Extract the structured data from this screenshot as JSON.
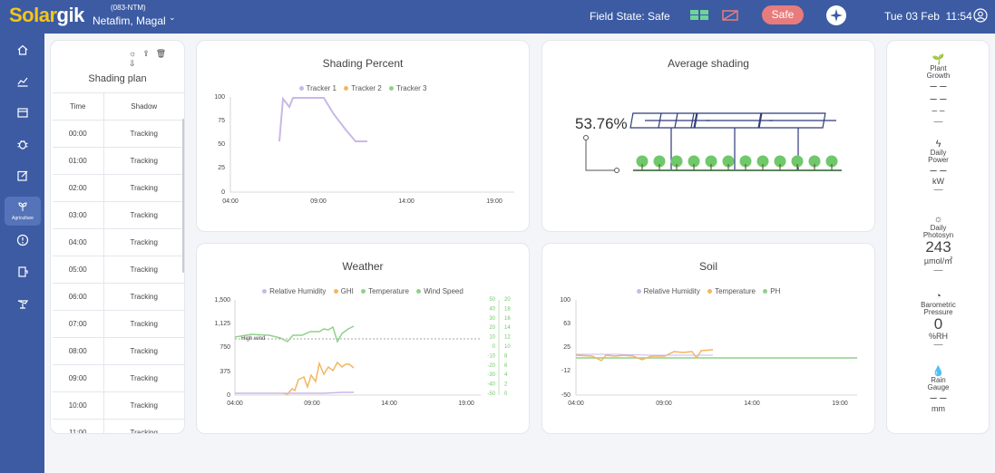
{
  "header": {
    "logo_part1": "Solar",
    "logo_part2": "gik",
    "site_code": "(083-NTM)",
    "site_name": "Netafim, Magal",
    "field_state": "Field State: Safe",
    "safe_label": "Safe",
    "date": "Tue 03 Feb",
    "time": "11:54"
  },
  "sidebar": {
    "items": [
      {
        "name": "home-icon"
      },
      {
        "name": "analytics-icon"
      },
      {
        "name": "calendar-icon"
      },
      {
        "name": "bug-icon"
      },
      {
        "name": "edit-icon"
      },
      {
        "name": "agriculture-icon",
        "label": "Agriculture",
        "active": true
      },
      {
        "name": "alert-icon"
      },
      {
        "name": "report-icon"
      },
      {
        "name": "tracker-icon"
      }
    ]
  },
  "shading_plan": {
    "title": "Shading plan",
    "col_time": "Time",
    "col_shadow": "Shadow",
    "rows": [
      {
        "time": "00:00",
        "shadow": "Tracking"
      },
      {
        "time": "01:00",
        "shadow": "Tracking"
      },
      {
        "time": "02:00",
        "shadow": "Tracking"
      },
      {
        "time": "03:00",
        "shadow": "Tracking"
      },
      {
        "time": "04:00",
        "shadow": "Tracking"
      },
      {
        "time": "05:00",
        "shadow": "Tracking"
      },
      {
        "time": "06:00",
        "shadow": "Tracking"
      },
      {
        "time": "07:00",
        "shadow": "Tracking"
      },
      {
        "time": "08:00",
        "shadow": "Tracking"
      },
      {
        "time": "09:00",
        "shadow": "Tracking"
      },
      {
        "time": "10:00",
        "shadow": "Tracking"
      },
      {
        "time": "11:00",
        "shadow": "Tracking"
      }
    ]
  },
  "shading_percent": {
    "title": "Shading Percent",
    "legend": [
      "Tracker 1",
      "Tracker 2",
      "Tracker 3"
    ],
    "legend_colors": [
      "#c9b8e8",
      "#f3b560",
      "#8fd18b"
    ],
    "y_ticks": [
      "100",
      "75",
      "50",
      "25",
      "0"
    ],
    "x_ticks": [
      "04:00",
      "09:00",
      "14:00",
      "19:00"
    ]
  },
  "average_shading": {
    "title": "Average shading",
    "value": "53.76%"
  },
  "weather": {
    "title": "Weather",
    "legend": [
      "Relative Humidity",
      "GHI",
      "Temperature",
      "Wind Speed"
    ],
    "legend_colors": [
      "#c9b8e8",
      "#f3b560",
      "#8fd18b",
      "#8fd18b"
    ],
    "y_ticks": [
      "1,500",
      "1,125",
      "750",
      "375",
      "0"
    ],
    "y2_ticks": [
      "50",
      "40",
      "30",
      "20",
      "10",
      "0",
      "-10",
      "-20",
      "-30",
      "-40",
      "-50"
    ],
    "y3_ticks": [
      "20",
      "18",
      "16",
      "14",
      "12",
      "10",
      "8",
      "6",
      "4",
      "2",
      "0"
    ],
    "x_ticks": [
      "04:00",
      "09:00",
      "14:00",
      "19:00"
    ],
    "annotation": "High wind"
  },
  "soil": {
    "title": "Soil",
    "legend": [
      "Relative Humidity",
      "Temperature",
      "PH"
    ],
    "legend_colors": [
      "#c9b8e8",
      "#f3b560",
      "#8fd18b"
    ],
    "y_ticks": [
      "100",
      "63",
      "25",
      "-12",
      "-50"
    ],
    "x_ticks": [
      "04:00",
      "09:00",
      "14:00",
      "19:00"
    ]
  },
  "metrics": {
    "plant_growth": {
      "label1": "Plant",
      "label2": "Growth",
      "value": "– –",
      "sub": "– –",
      "sep": "—"
    },
    "daily_power": {
      "label1": "Daily",
      "label2": "Power",
      "value": "– –",
      "unit": "kW",
      "sep": "—"
    },
    "daily_photosyn": {
      "label1": "Daily",
      "label2": "Photosyn",
      "value": "243",
      "unit": "µmol/㎡",
      "sep": "—"
    },
    "barometric": {
      "label1": "Barometric",
      "label2": "Pressure",
      "value": "0",
      "unit": "%RH",
      "sep": "—"
    },
    "rain": {
      "label1": "Rain",
      "label2": "Gauge",
      "value": "– –",
      "unit": "mm"
    }
  },
  "colors": {
    "brand": "#3c5ba3",
    "logo_accent": "#f5c518",
    "safe": "#e87c7c",
    "tracker1": "#c9b8e8",
    "tracker2": "#f3b560",
    "tracker3": "#8fd18b",
    "panel": "#2e3a78"
  }
}
